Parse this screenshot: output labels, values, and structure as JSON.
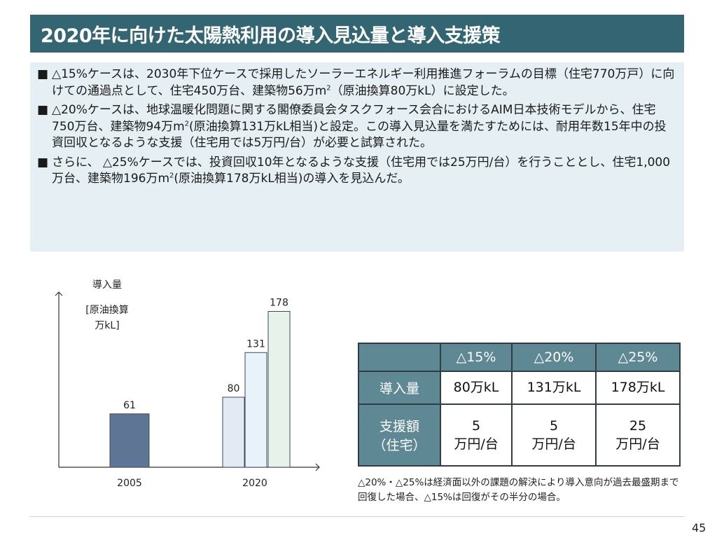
{
  "slide": {
    "title": "2020年に向けた太陽熱利用の導入見込量と導入支援策",
    "page_number": "45",
    "note": "△20%・△25%は経済面以外の課題の解決により導入意向が過去最盛期まで回復した場合、△15%は回復がその半分の場合。"
  },
  "bullets": [
    {
      "mark": "■",
      "pre": "△15%ケースは、2030年下位ケースで採用したソーラーエネルギー利用推進フォーラムの目標（住宅770万戸）に向けての通過点として、住宅450万台、建築物56万m",
      "sup": "2",
      "post": "（原油換算80万kL）に設定した。"
    },
    {
      "mark": "■",
      "pre": "△20%ケースは、地球温暖化問題に関する閣僚委員会タスクフォース会合におけるAIM日本技術モデルから、住宅750万台、建築物94万m",
      "sup": "2",
      "post": "(原油換算131万kL相当)と設定。この導入見込量を満たすためには、耐用年数15年中の投資回収となるような支援（住宅用では5万円/台）が必要と試算された。"
    },
    {
      "mark": "■",
      "pre": "さらに、 △25%ケースでは、投資回収10年となるような支援（住宅用では25万円/台）を行うこととし、住宅1,000万台、建築物196万m",
      "sup": "2",
      "post": "(原油換算178万kL相当)の導入を見込んだ。"
    }
  ],
  "chart_data": {
    "type": "bar",
    "ylabel_line1": "導入量",
    "unit_line1": "[原油換算",
    "unit_line2": "万kL]",
    "categories": [
      "2005",
      "2020"
    ],
    "bars": [
      {
        "category": "2005",
        "value": 61,
        "label": "61",
        "color": "#5f7595"
      },
      {
        "category": "2020",
        "value": 80,
        "label": "80",
        "color": "#e3eaf3"
      },
      {
        "category": "2020",
        "value": 131,
        "label": "131",
        "color": "#e8f3f9"
      },
      {
        "category": "2020",
        "value": 178,
        "label": "178",
        "color": "#e6f2ea"
      }
    ],
    "ylim": [
      0,
      200
    ],
    "grid": false,
    "legend": "none"
  },
  "table": {
    "headers": [
      "△15%",
      "△20%",
      "△25%"
    ],
    "rows": [
      {
        "label_line1": "導入量",
        "label_line2": "",
        "cells": [
          {
            "line1": "80万kL",
            "line2": ""
          },
          {
            "line1": "131万kL",
            "line2": ""
          },
          {
            "line1": "178万kL",
            "line2": ""
          }
        ]
      },
      {
        "label_line1": "支援額",
        "label_line2": "（住宅）",
        "cells": [
          {
            "line1": "5",
            "line2": "万円/台"
          },
          {
            "line1": "5",
            "line2": "万円/台"
          },
          {
            "line1": "25",
            "line2": "万円/台"
          }
        ]
      }
    ]
  },
  "colors": {
    "title_bg": "#336672",
    "text_box_bg": "#e6f0f4",
    "table_header_bg": "#5f8895",
    "table_border": "#2f3d46"
  }
}
